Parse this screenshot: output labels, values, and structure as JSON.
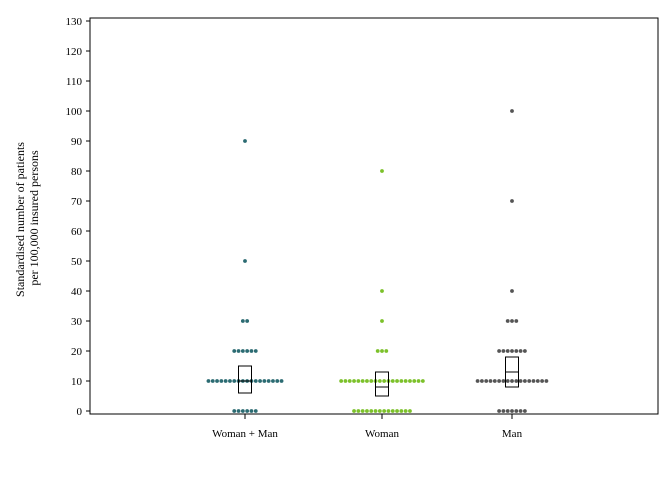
{
  "chart_data": {
    "type": "scatter",
    "subtype": "dot-strip-with-boxplot",
    "ylabel_lines": [
      "Standardised number of patients",
      "per 100,000 insured persons"
    ],
    "ylim": [
      0,
      130
    ],
    "yticks": [
      0,
      10,
      20,
      30,
      40,
      50,
      60,
      70,
      80,
      90,
      100,
      110,
      120,
      130
    ],
    "categories": [
      "Woman + Man",
      "Woman",
      "Man"
    ],
    "grid": false,
    "legend": "none",
    "series": [
      {
        "category": "Woman + Man",
        "color": "#2b6b72",
        "points": [
          {
            "y": 0,
            "count": 6
          },
          {
            "y": 10,
            "count": 18
          },
          {
            "y": 20,
            "count": 6
          },
          {
            "y": 30,
            "count": 2
          },
          {
            "y": 50,
            "count": 1
          },
          {
            "y": 90,
            "count": 1
          }
        ],
        "box": {
          "q1": 6,
          "median": 10,
          "q3": 15
        }
      },
      {
        "category": "Woman",
        "color": "#7cc12a",
        "points": [
          {
            "y": 0,
            "count": 14
          },
          {
            "y": 10,
            "count": 20
          },
          {
            "y": 20,
            "count": 3
          },
          {
            "y": 30,
            "count": 1
          },
          {
            "y": 40,
            "count": 1
          },
          {
            "y": 80,
            "count": 1
          }
        ],
        "box": {
          "q1": 5,
          "median": 8,
          "q3": 13
        }
      },
      {
        "category": "Man",
        "color": "#555555",
        "points": [
          {
            "y": 0,
            "count": 7
          },
          {
            "y": 10,
            "count": 17
          },
          {
            "y": 20,
            "count": 7
          },
          {
            "y": 30,
            "count": 3
          },
          {
            "y": 40,
            "count": 1
          },
          {
            "y": 70,
            "count": 1
          },
          {
            "y": 100,
            "count": 1
          }
        ],
        "box": {
          "q1": 8,
          "median": 13,
          "q3": 18
        }
      }
    ]
  }
}
